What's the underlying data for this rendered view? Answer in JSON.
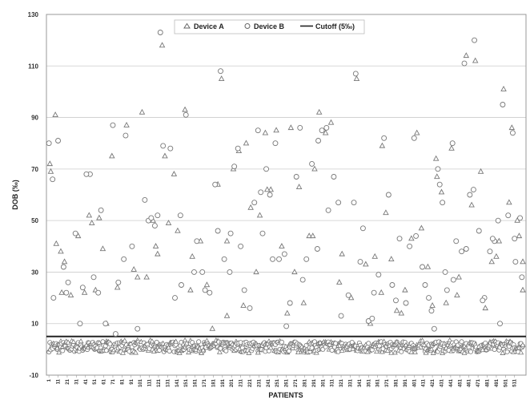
{
  "chart_data": {
    "type": "scatter",
    "title": "",
    "xlabel": "PATIENTS",
    "ylabel": "DOB (‰)",
    "ylim": [
      -10,
      130
    ],
    "yticks": [
      -10,
      10,
      30,
      50,
      70,
      90,
      110,
      130
    ],
    "xlim": [
      0,
      520
    ],
    "xticks": [
      1,
      11,
      21,
      31,
      41,
      51,
      61,
      71,
      81,
      91,
      101,
      111,
      121,
      131,
      141,
      151,
      161,
      171,
      181,
      191,
      201,
      211,
      221,
      231,
      241,
      251,
      261,
      271,
      281,
      291,
      301,
      311,
      321,
      331,
      341,
      351,
      361,
      371,
      381,
      391,
      401,
      411,
      421,
      431,
      441,
      451,
      461,
      471,
      481,
      491,
      501,
      511
    ],
    "grid": true,
    "legend_position": "top",
    "cutoff": {
      "name": "Cutoff (5‰)",
      "value": 5,
      "color": "#222222"
    },
    "series": [
      {
        "name": "Device A",
        "marker": "triangle",
        "color": "#777777",
        "points": [
          [
            2,
            72
          ],
          [
            8,
            91
          ],
          [
            14,
            38
          ],
          [
            18,
            34
          ],
          [
            25,
            21
          ],
          [
            33,
            44
          ],
          [
            40,
            22
          ],
          [
            45,
            52
          ],
          [
            52,
            23
          ],
          [
            56,
            51
          ],
          [
            64,
            10
          ],
          [
            70,
            75
          ],
          [
            76,
            24
          ],
          [
            86,
            87
          ],
          [
            94,
            31
          ],
          [
            103,
            92
          ],
          [
            108,
            28
          ],
          [
            115,
            50
          ],
          [
            120,
            37
          ],
          [
            125,
            118
          ],
          [
            128,
            75
          ],
          [
            132,
            49
          ],
          [
            138,
            68
          ],
          [
            150,
            93
          ],
          [
            158,
            36
          ],
          [
            167,
            42
          ],
          [
            174,
            25
          ],
          [
            180,
            8
          ],
          [
            186,
            64
          ],
          [
            190,
            105
          ],
          [
            196,
            42
          ],
          [
            203,
            70
          ],
          [
            209,
            77
          ],
          [
            214,
            17
          ],
          [
            217,
            80
          ],
          [
            222,
            55
          ],
          [
            228,
            30
          ],
          [
            232,
            52
          ],
          [
            238,
            84
          ],
          [
            244,
            62
          ],
          [
            250,
            85
          ],
          [
            256,
            40
          ],
          [
            262,
            14
          ],
          [
            266,
            86
          ],
          [
            275,
            63
          ],
          [
            280,
            18
          ],
          [
            286,
            44
          ],
          [
            292,
            70
          ],
          [
            297,
            92
          ],
          [
            304,
            84
          ],
          [
            310,
            88
          ],
          [
            322,
            37
          ],
          [
            332,
            20
          ],
          [
            338,
            105
          ],
          [
            348,
            33
          ],
          [
            353,
            10
          ],
          [
            358,
            36
          ],
          [
            366,
            79
          ],
          [
            370,
            53
          ],
          [
            376,
            35
          ],
          [
            382,
            15
          ],
          [
            391,
            23
          ],
          [
            398,
            43
          ],
          [
            404,
            84
          ],
          [
            409,
            47
          ],
          [
            416,
            32
          ],
          [
            421,
            17
          ],
          [
            425,
            74
          ],
          [
            431,
            61
          ],
          [
            436,
            18
          ],
          [
            442,
            78
          ],
          [
            450,
            28
          ],
          [
            458,
            114
          ],
          [
            464,
            56
          ],
          [
            468,
            112
          ],
          [
            474,
            69
          ],
          [
            479,
            16
          ],
          [
            486,
            34
          ],
          [
            494,
            42
          ],
          [
            499,
            101
          ],
          [
            505,
            57
          ],
          [
            508,
            86
          ],
          [
            514,
            50
          ],
          [
            520,
            34
          ],
          [
            3,
            69
          ],
          [
            9,
            41
          ],
          [
            15,
            22
          ],
          [
            48,
            49
          ],
          [
            60,
            39
          ],
          [
            98,
            28
          ],
          [
            118,
            40
          ],
          [
            142,
            46
          ],
          [
            156,
            23
          ],
          [
            196,
            13
          ],
          [
            240,
            62
          ],
          [
            270,
            30
          ],
          [
            290,
            44
          ],
          [
            319,
            26
          ],
          [
            365,
            22
          ],
          [
            387,
            14
          ],
          [
            426,
            67
          ],
          [
            448,
            21
          ],
          [
            491,
            36
          ],
          [
            516,
            44
          ],
          [
            520,
            23
          ]
        ]
      },
      {
        "name": "Device B",
        "marker": "circle",
        "color": "#777777",
        "points": [
          [
            1,
            80
          ],
          [
            5,
            66
          ],
          [
            11,
            81
          ],
          [
            17,
            32
          ],
          [
            20,
            22
          ],
          [
            30,
            45
          ],
          [
            38,
            24
          ],
          [
            46,
            68
          ],
          [
            50,
            28
          ],
          [
            58,
            54
          ],
          [
            63,
            10
          ],
          [
            71,
            87
          ],
          [
            77,
            26
          ],
          [
            85,
            83
          ],
          [
            92,
            40
          ],
          [
            98,
            8
          ],
          [
            106,
            58
          ],
          [
            110,
            50
          ],
          [
            117,
            48
          ],
          [
            123,
            123
          ],
          [
            126,
            79
          ],
          [
            134,
            78
          ],
          [
            145,
            52
          ],
          [
            151,
            91
          ],
          [
            163,
            42
          ],
          [
            169,
            30
          ],
          [
            177,
            22
          ],
          [
            183,
            64
          ],
          [
            189,
            108
          ],
          [
            193,
            35
          ],
          [
            200,
            45
          ],
          [
            204,
            71
          ],
          [
            208,
            78
          ],
          [
            215,
            23
          ],
          [
            221,
            16
          ],
          [
            226,
            57
          ],
          [
            230,
            85
          ],
          [
            233,
            61
          ],
          [
            239,
            70
          ],
          [
            243,
            60
          ],
          [
            249,
            80
          ],
          [
            253,
            35
          ],
          [
            259,
            37
          ],
          [
            265,
            18
          ],
          [
            272,
            67
          ],
          [
            276,
            86
          ],
          [
            283,
            35
          ],
          [
            289,
            72
          ],
          [
            296,
            81
          ],
          [
            300,
            85
          ],
          [
            307,
            54
          ],
          [
            313,
            67
          ],
          [
            321,
            13
          ],
          [
            329,
            21
          ],
          [
            337,
            107
          ],
          [
            345,
            47
          ],
          [
            351,
            11
          ],
          [
            357,
            22
          ],
          [
            362,
            29
          ],
          [
            368,
            82
          ],
          [
            373,
            60
          ],
          [
            377,
            25
          ],
          [
            385,
            43
          ],
          [
            392,
            18
          ],
          [
            396,
            40
          ],
          [
            403,
            44
          ],
          [
            410,
            32
          ],
          [
            417,
            20
          ],
          [
            423,
            8
          ],
          [
            427,
            70
          ],
          [
            432,
            57
          ],
          [
            437,
            23
          ],
          [
            443,
            80
          ],
          [
            447,
            42
          ],
          [
            453,
            38
          ],
          [
            456,
            111
          ],
          [
            462,
            60
          ],
          [
            467,
            120
          ],
          [
            472,
            46
          ],
          [
            478,
            20
          ],
          [
            484,
            38
          ],
          [
            489,
            42
          ],
          [
            495,
            10
          ],
          [
            498,
            95
          ],
          [
            504,
            52
          ],
          [
            509,
            84
          ],
          [
            512,
            34
          ],
          [
            517,
            51
          ],
          [
            519,
            28
          ],
          [
            6,
            20
          ],
          [
            22,
            26
          ],
          [
            35,
            10
          ],
          [
            42,
            68
          ],
          [
            55,
            22
          ],
          [
            74,
            6
          ],
          [
            83,
            35
          ],
          [
            113,
            51
          ],
          [
            120,
            52
          ],
          [
            139,
            20
          ],
          [
            146,
            25
          ],
          [
            160,
            30
          ],
          [
            172,
            23
          ],
          [
            186,
            46
          ],
          [
            199,
            30
          ],
          [
            211,
            40
          ],
          [
            235,
            45
          ],
          [
            246,
            35
          ],
          [
            261,
            9
          ],
          [
            279,
            27
          ],
          [
            295,
            39
          ],
          [
            305,
            86
          ],
          [
            318,
            57
          ],
          [
            335,
            57
          ],
          [
            342,
            34
          ],
          [
            355,
            12
          ],
          [
            381,
            19
          ],
          [
            401,
            82
          ],
          [
            413,
            25
          ],
          [
            420,
            15
          ],
          [
            429,
            64
          ],
          [
            435,
            30
          ],
          [
            444,
            27
          ],
          [
            458,
            39
          ],
          [
            466,
            62
          ],
          [
            476,
            19
          ],
          [
            487,
            43
          ],
          [
            493,
            50
          ],
          [
            511,
            43
          ]
        ]
      }
    ],
    "annotation_labels": [
      "Device A",
      "Device B",
      "Cutoff (5‰)"
    ]
  }
}
